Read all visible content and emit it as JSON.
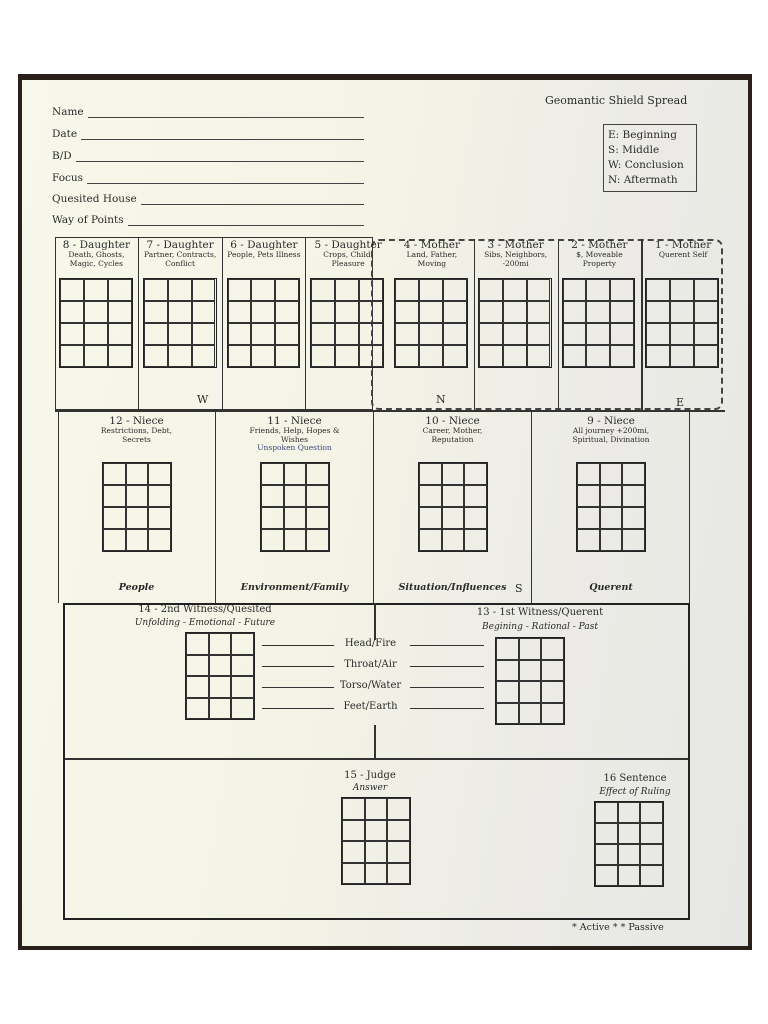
{
  "title": "Geomantic Shield Spread",
  "fields": [
    "Name",
    "Date",
    "B/D",
    "Focus",
    "Quesited House",
    "Way of Points"
  ],
  "legend": [
    "E: Beginning",
    "S: Middle",
    "W: Conclusion",
    "N: Aftermath"
  ],
  "top_row": [
    {
      "title": "8 - Daughter",
      "desc": "Death, Ghosts, Magic, Cycles"
    },
    {
      "title": "7 - Daughter",
      "desc": "Partner, Contracts, Conflict"
    },
    {
      "title": "6 - Daughter",
      "desc": "People, Pets Illness"
    },
    {
      "title": "5 - Daughter",
      "desc": "Crops, Child, Pleasure"
    },
    {
      "title": "4 - Mother",
      "desc": "Land, Father, Moving"
    },
    {
      "title": "3 - Mother",
      "desc": "Sibs, Neighbors, -200mi"
    },
    {
      "title": "2 - Mother",
      "desc": "$, Moveable Property"
    },
    {
      "title": "1 - Mother",
      "desc": "Querent Self"
    }
  ],
  "directions": {
    "w": "W",
    "n": "N",
    "e": "E",
    "s": "S"
  },
  "second_row": [
    {
      "title": "12 - Niece",
      "desc": "Restrictions, Debt, Secrets",
      "footer": "People"
    },
    {
      "title": "11 - Niece",
      "desc": "Friends, Help, Hopes & Wishes",
      "extra": "Unspoken Question",
      "footer": "Environment/Family"
    },
    {
      "title": "10 - Niece",
      "desc": "Career, Mother, Reputation",
      "footer": "Situation/Influences"
    },
    {
      "title": "9 - Niece",
      "desc": "All journey +200mi, Spiritual, Divination",
      "footer": "Querent"
    }
  ],
  "witness_left": {
    "title": "14 - 2nd Witness/Quesited",
    "desc": "Unfolding - Emotional - Future"
  },
  "witness_right": {
    "title": "13 - 1st Witness/Querent",
    "desc": "Begining - Rational - Past"
  },
  "body_lines": [
    "Head/Fire",
    "Throat/Air",
    "Torso/Water",
    "Feet/Earth"
  ],
  "judge": {
    "title": "15 - Judge",
    "desc": "Answer"
  },
  "sentence": {
    "title": "16 Sentence",
    "desc": "Effect of Ruling"
  },
  "footer": "* Active * * Passive"
}
